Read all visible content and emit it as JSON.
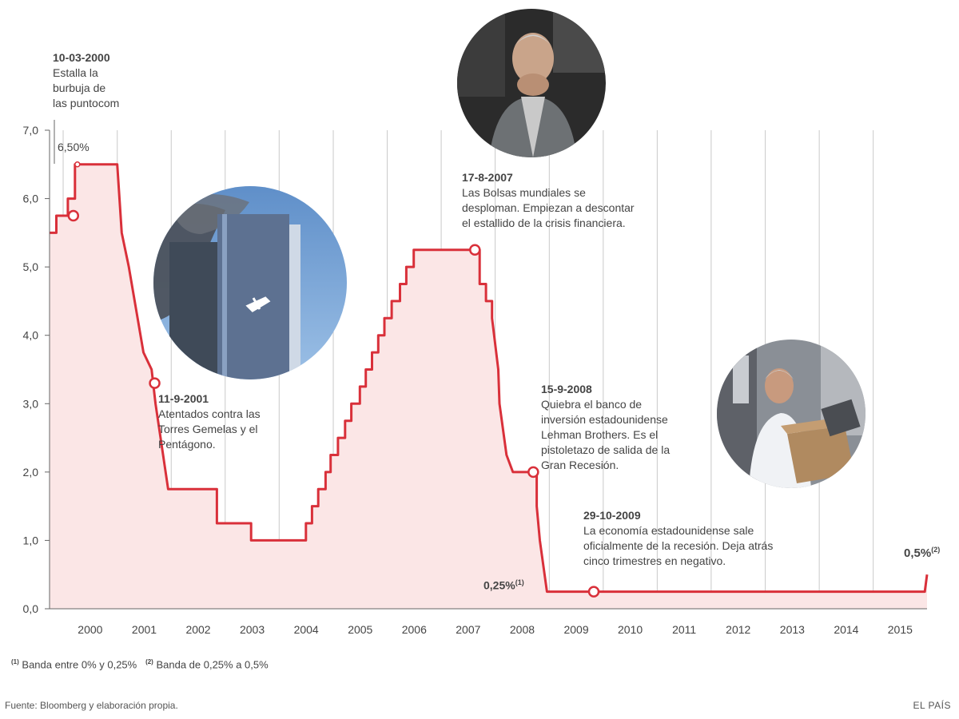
{
  "chart_data": {
    "type": "line",
    "ylim": [
      0,
      7
    ],
    "y_ticks": [
      "0,0",
      "1,0",
      "2,0",
      "3,0",
      "4,0",
      "5,0",
      "6,0",
      "7,0"
    ],
    "x_labels": [
      "2000",
      "2001",
      "2002",
      "2003",
      "2004",
      "2005",
      "2006",
      "2007",
      "2008",
      "2009",
      "2010",
      "2011",
      "2012",
      "2013",
      "2014",
      "2015"
    ],
    "x_range": [
      "1999-10-01",
      "2015-12-31"
    ],
    "grid": "vertical lines at year boundaries",
    "fill": "area under line shaded light red",
    "line_color": "#d9303a",
    "fill_color": "#fbe6e6",
    "series": [
      {
        "values": [
          {
            "date": "1999-10-01",
            "rate": 5.5
          },
          {
            "date": "1999-11-16",
            "rate": 5.5
          },
          {
            "date": "1999-11-16",
            "rate": 5.75
          },
          {
            "date": "2000-02-02",
            "rate": 5.75
          },
          {
            "date": "2000-02-02",
            "rate": 6.0
          },
          {
            "date": "2000-03-21",
            "rate": 6.0
          },
          {
            "date": "2000-03-21",
            "rate": 6.5
          },
          {
            "date": "2001-01-01",
            "rate": 6.5
          },
          {
            "date": "2001-01-31",
            "rate": 5.5
          },
          {
            "date": "2001-03-20",
            "rate": 5.0
          },
          {
            "date": "2001-06-27",
            "rate": 3.75
          },
          {
            "date": "2001-08-21",
            "rate": 3.5
          },
          {
            "date": "2001-09-17",
            "rate": 3.0
          },
          {
            "date": "2001-12-11",
            "rate": 1.75
          },
          {
            "date": "2002-11-06",
            "rate": 1.75
          },
          {
            "date": "2002-11-06",
            "rate": 1.25
          },
          {
            "date": "2003-06-25",
            "rate": 1.25
          },
          {
            "date": "2003-06-25",
            "rate": 1.0
          },
          {
            "date": "2004-06-30",
            "rate": 1.0
          },
          {
            "date": "2004-06-30",
            "rate": 1.25
          },
          {
            "date": "2004-08-10",
            "rate": 1.25
          },
          {
            "date": "2004-08-10",
            "rate": 1.5
          },
          {
            "date": "2004-09-21",
            "rate": 1.5
          },
          {
            "date": "2004-09-21",
            "rate": 1.75
          },
          {
            "date": "2004-11-10",
            "rate": 1.75
          },
          {
            "date": "2004-11-10",
            "rate": 2.0
          },
          {
            "date": "2004-12-14",
            "rate": 2.0
          },
          {
            "date": "2004-12-14",
            "rate": 2.25
          },
          {
            "date": "2005-02-02",
            "rate": 2.25
          },
          {
            "date": "2005-02-02",
            "rate": 2.5
          },
          {
            "date": "2005-03-22",
            "rate": 2.5
          },
          {
            "date": "2005-03-22",
            "rate": 2.75
          },
          {
            "date": "2005-05-03",
            "rate": 2.75
          },
          {
            "date": "2005-05-03",
            "rate": 3.0
          },
          {
            "date": "2005-06-30",
            "rate": 3.0
          },
          {
            "date": "2005-06-30",
            "rate": 3.25
          },
          {
            "date": "2005-08-09",
            "rate": 3.25
          },
          {
            "date": "2005-08-09",
            "rate": 3.5
          },
          {
            "date": "2005-09-20",
            "rate": 3.5
          },
          {
            "date": "2005-09-20",
            "rate": 3.75
          },
          {
            "date": "2005-11-01",
            "rate": 3.75
          },
          {
            "date": "2005-11-01",
            "rate": 4.0
          },
          {
            "date": "2005-12-13",
            "rate": 4.0
          },
          {
            "date": "2005-12-13",
            "rate": 4.25
          },
          {
            "date": "2006-01-31",
            "rate": 4.25
          },
          {
            "date": "2006-01-31",
            "rate": 4.5
          },
          {
            "date": "2006-03-28",
            "rate": 4.5
          },
          {
            "date": "2006-03-28",
            "rate": 4.75
          },
          {
            "date": "2006-05-10",
            "rate": 4.75
          },
          {
            "date": "2006-05-10",
            "rate": 5.0
          },
          {
            "date": "2006-06-29",
            "rate": 5.0
          },
          {
            "date": "2006-06-29",
            "rate": 5.25
          },
          {
            "date": "2007-09-18",
            "rate": 5.25
          },
          {
            "date": "2007-09-18",
            "rate": 4.75
          },
          {
            "date": "2007-10-31",
            "rate": 4.75
          },
          {
            "date": "2007-10-31",
            "rate": 4.5
          },
          {
            "date": "2007-12-11",
            "rate": 4.5
          },
          {
            "date": "2007-12-11",
            "rate": 4.25
          },
          {
            "date": "2008-01-22",
            "rate": 3.5
          },
          {
            "date": "2008-01-30",
            "rate": 3.0
          },
          {
            "date": "2008-03-18",
            "rate": 2.25
          },
          {
            "date": "2008-04-30",
            "rate": 2.0
          },
          {
            "date": "2008-10-08",
            "rate": 2.0
          },
          {
            "date": "2008-10-08",
            "rate": 1.5
          },
          {
            "date": "2008-10-29",
            "rate": 1.0
          },
          {
            "date": "2008-12-16",
            "rate": 0.25
          },
          {
            "date": "2015-12-16",
            "rate": 0.25
          },
          {
            "date": "2015-12-31",
            "rate": 0.5
          }
        ]
      }
    ],
    "markers": [
      {
        "date": "2000-03-10",
        "rate": 5.75
      },
      {
        "date": "2001-09-11",
        "rate": 3.3
      },
      {
        "date": "2007-08-17",
        "rate": 5.25
      },
      {
        "date": "2008-09-15",
        "rate": 2.0
      },
      {
        "date": "2009-10-29",
        "rate": 0.25
      }
    ]
  },
  "labels": {
    "peak": "6,50%",
    "low": "0,25%",
    "low_sup": "(1)",
    "end": "0,5%",
    "end_sup": "(2)"
  },
  "annotations": {
    "a2000": {
      "date": "10-03-2000",
      "text": "Estalla la\nburbuja de\nlas puntocom"
    },
    "a2001": {
      "date": "11-9-2001",
      "text": "Atentados contra las\nTorres Gemelas y el\nPentágono."
    },
    "a2007": {
      "date": "17-8-2007",
      "text": "Las Bolsas mundiales se\ndesploman. Empiezan a descontar\nel estallido de la crisis financiera."
    },
    "a2008": {
      "date": "15-9-2008",
      "text": "Quiebra el banco de\ninversión estadounidense\nLehman Brothers. Es el\npistoletazo de salida de la\nGran Recesión."
    },
    "a2009": {
      "date": "29-10-2009",
      "text": "La economía estadounidense sale\noficialmente de la recesión. Deja atrás\ncinco trimestres en negativo."
    }
  },
  "photos": {
    "wtc": "photo-twin-towers-attack",
    "trader": "photo-worried-trader",
    "lehman": "photo-lehman-employee-with-box"
  },
  "notes": {
    "n1_sup": "(1)",
    "n1": " Banda entre 0% y 0,25%",
    "n2_sup": "(2)",
    "n2": " Banda de 0,25% a 0,5%"
  },
  "source": "Fuente: Bloomberg y elaboración propia.",
  "brand": "EL PAÍS"
}
